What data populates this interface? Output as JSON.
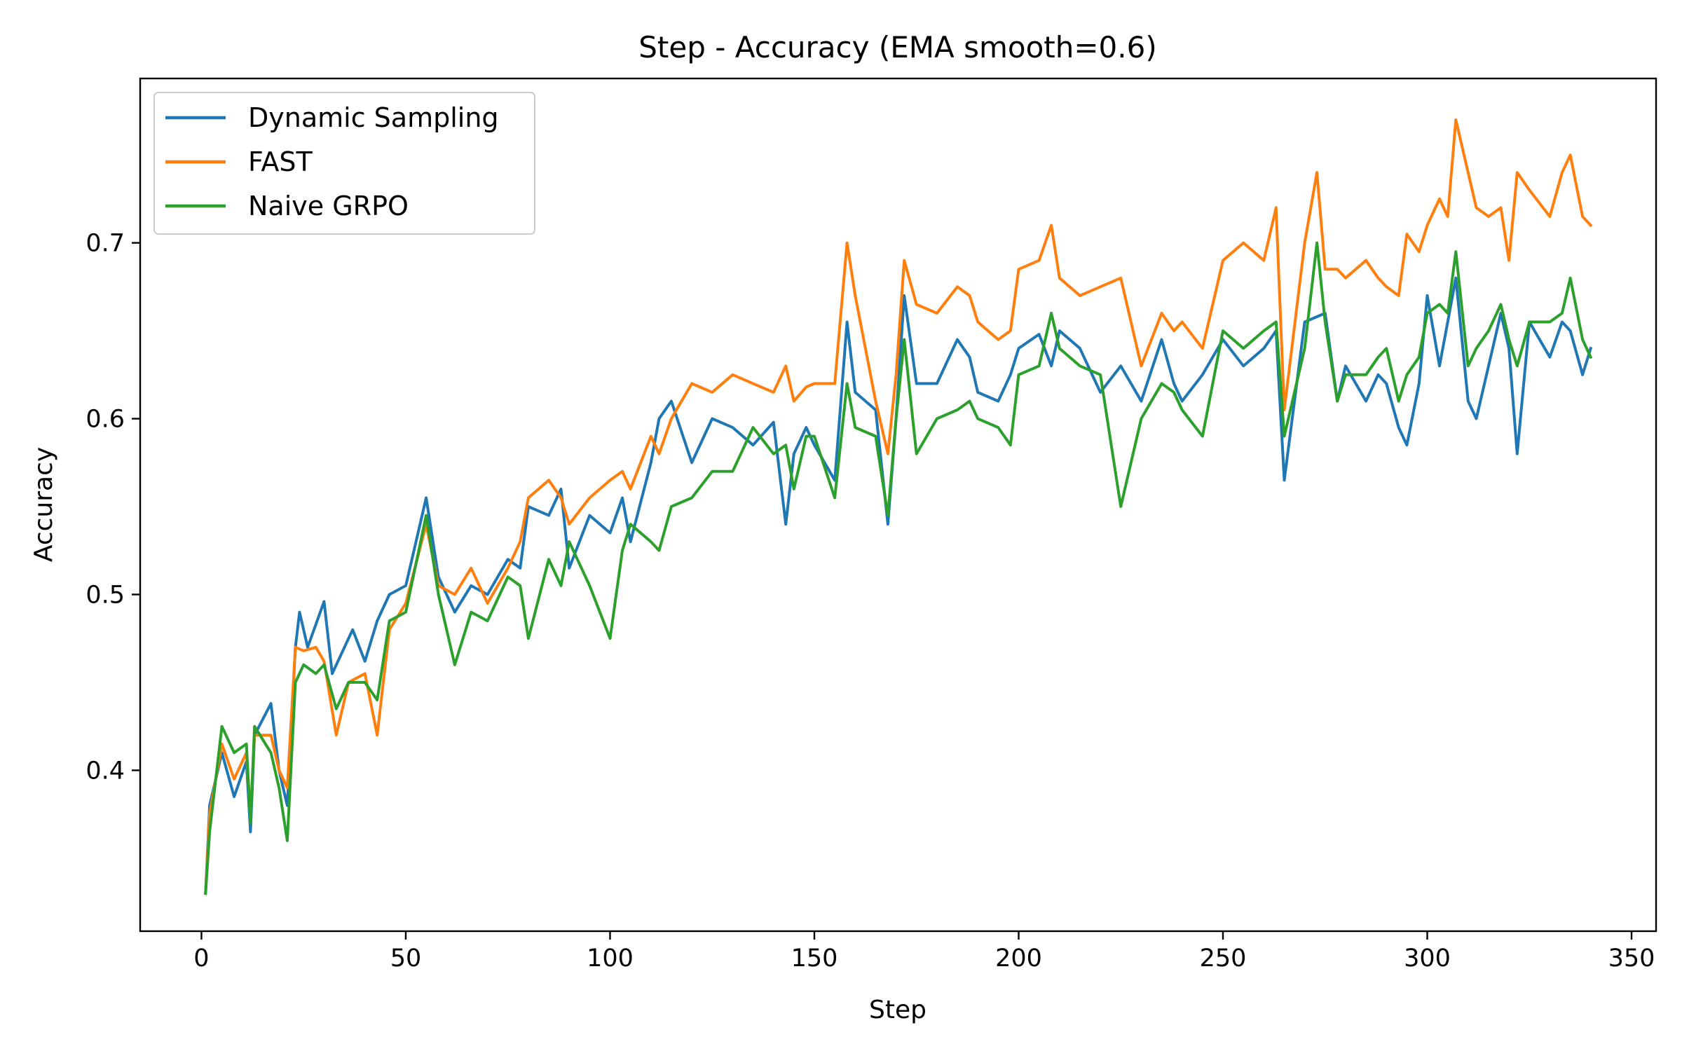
{
  "chart_data": {
    "type": "line",
    "title": "Step - Accuracy (EMA smooth=0.6)",
    "xlabel": "Step",
    "ylabel": "Accuracy",
    "xlim": [
      -15,
      356
    ],
    "ylim": [
      0.3085,
      0.7935
    ],
    "xticks": [
      0,
      50,
      100,
      150,
      200,
      250,
      300,
      350
    ],
    "yticks": [
      0.4,
      0.5,
      0.6,
      0.7
    ],
    "xtick_labels": [
      "0",
      "50",
      "100",
      "150",
      "200",
      "250",
      "300",
      "350"
    ],
    "ytick_labels": [
      "0.4",
      "0.5",
      "0.6",
      "0.7"
    ],
    "grid": false,
    "legend_position": "top-left",
    "series": [
      {
        "name": "Dynamic Sampling",
        "color": "#1f77b4",
        "x": [
          1,
          2,
          5,
          8,
          11,
          12,
          13,
          17,
          19,
          21,
          23,
          24,
          26,
          30,
          32,
          35,
          37,
          40,
          43,
          46,
          50,
          55,
          58,
          62,
          66,
          70,
          75,
          78,
          80,
          85,
          88,
          90,
          95,
          100,
          103,
          105,
          110,
          112,
          115,
          120,
          125,
          130,
          135,
          140,
          143,
          145,
          148,
          150,
          155,
          158,
          160,
          165,
          168,
          170,
          172,
          175,
          180,
          185,
          188,
          190,
          195,
          198,
          200,
          205,
          208,
          210,
          215,
          220,
          225,
          230,
          235,
          238,
          240,
          245,
          250,
          255,
          260,
          263,
          265,
          270,
          275,
          278,
          280,
          285,
          288,
          290,
          293,
          295,
          298,
          300,
          303,
          305,
          307,
          310,
          312,
          315,
          318,
          320,
          322,
          325,
          330,
          333,
          335,
          338,
          340
        ],
        "y": [
          0.33,
          0.38,
          0.41,
          0.385,
          0.405,
          0.365,
          0.42,
          0.438,
          0.4,
          0.38,
          0.47,
          0.49,
          0.47,
          0.496,
          0.455,
          0.47,
          0.48,
          0.462,
          0.485,
          0.5,
          0.505,
          0.555,
          0.51,
          0.49,
          0.505,
          0.5,
          0.52,
          0.515,
          0.55,
          0.545,
          0.56,
          0.515,
          0.545,
          0.535,
          0.555,
          0.53,
          0.575,
          0.6,
          0.61,
          0.575,
          0.6,
          0.595,
          0.585,
          0.598,
          0.54,
          0.58,
          0.595,
          0.585,
          0.565,
          0.655,
          0.615,
          0.605,
          0.54,
          0.6,
          0.67,
          0.62,
          0.62,
          0.645,
          0.635,
          0.615,
          0.61,
          0.625,
          0.64,
          0.648,
          0.63,
          0.65,
          0.64,
          0.615,
          0.63,
          0.61,
          0.645,
          0.62,
          0.61,
          0.625,
          0.645,
          0.63,
          0.64,
          0.65,
          0.565,
          0.655,
          0.66,
          0.61,
          0.63,
          0.61,
          0.625,
          0.62,
          0.595,
          0.585,
          0.62,
          0.67,
          0.63,
          0.655,
          0.68,
          0.61,
          0.6,
          0.63,
          0.66,
          0.64,
          0.58,
          0.655,
          0.635,
          0.655,
          0.65,
          0.625,
          0.64
        ]
      },
      {
        "name": "FAST",
        "color": "#ff7f0e",
        "x": [
          1,
          2,
          5,
          8,
          11,
          12,
          13,
          17,
          19,
          21,
          23,
          25,
          28,
          30,
          33,
          36,
          40,
          43,
          46,
          50,
          55,
          58,
          62,
          66,
          70,
          75,
          78,
          80,
          85,
          88,
          90,
          95,
          100,
          103,
          105,
          110,
          112,
          115,
          120,
          125,
          130,
          135,
          140,
          143,
          145,
          148,
          150,
          155,
          158,
          160,
          165,
          168,
          170,
          172,
          175,
          180,
          185,
          188,
          190,
          195,
          198,
          200,
          205,
          208,
          210,
          215,
          220,
          225,
          230,
          235,
          238,
          240,
          245,
          250,
          255,
          260,
          263,
          265,
          270,
          273,
          275,
          278,
          280,
          285,
          288,
          290,
          293,
          295,
          298,
          300,
          303,
          305,
          307,
          310,
          312,
          315,
          318,
          320,
          322,
          325,
          330,
          333,
          335,
          338,
          340
        ],
        "y": [
          0.33,
          0.375,
          0.415,
          0.395,
          0.41,
          0.375,
          0.42,
          0.42,
          0.4,
          0.39,
          0.47,
          0.468,
          0.47,
          0.462,
          0.42,
          0.45,
          0.455,
          0.42,
          0.48,
          0.495,
          0.54,
          0.505,
          0.5,
          0.515,
          0.495,
          0.515,
          0.53,
          0.555,
          0.565,
          0.555,
          0.54,
          0.555,
          0.565,
          0.57,
          0.56,
          0.59,
          0.58,
          0.6,
          0.62,
          0.615,
          0.625,
          0.62,
          0.615,
          0.63,
          0.61,
          0.618,
          0.62,
          0.62,
          0.7,
          0.67,
          0.61,
          0.58,
          0.625,
          0.69,
          0.665,
          0.66,
          0.675,
          0.67,
          0.655,
          0.645,
          0.65,
          0.685,
          0.69,
          0.71,
          0.68,
          0.67,
          0.675,
          0.68,
          0.63,
          0.66,
          0.65,
          0.655,
          0.64,
          0.69,
          0.7,
          0.69,
          0.72,
          0.605,
          0.7,
          0.74,
          0.685,
          0.685,
          0.68,
          0.69,
          0.68,
          0.675,
          0.67,
          0.705,
          0.695,
          0.71,
          0.725,
          0.715,
          0.77,
          0.74,
          0.72,
          0.715,
          0.72,
          0.69,
          0.74,
          0.73,
          0.715,
          0.74,
          0.75,
          0.715,
          0.71
        ]
      },
      {
        "name": "Naive GRPO",
        "color": "#2ca02c",
        "x": [
          1,
          2,
          5,
          8,
          11,
          12,
          13,
          17,
          19,
          21,
          23,
          25,
          28,
          30,
          33,
          36,
          40,
          43,
          46,
          50,
          55,
          58,
          62,
          66,
          70,
          75,
          78,
          80,
          85,
          88,
          90,
          95,
          100,
          103,
          105,
          110,
          112,
          115,
          120,
          125,
          130,
          135,
          140,
          143,
          145,
          148,
          150,
          155,
          158,
          160,
          165,
          168,
          170,
          172,
          175,
          180,
          185,
          188,
          190,
          195,
          198,
          200,
          205,
          208,
          210,
          215,
          220,
          225,
          230,
          235,
          238,
          240,
          245,
          250,
          255,
          260,
          263,
          265,
          270,
          273,
          275,
          278,
          280,
          285,
          288,
          290,
          293,
          295,
          298,
          300,
          303,
          305,
          307,
          310,
          312,
          315,
          318,
          320,
          322,
          325,
          330,
          333,
          335,
          338,
          340
        ],
        "y": [
          0.33,
          0.365,
          0.425,
          0.41,
          0.415,
          0.37,
          0.425,
          0.41,
          0.39,
          0.36,
          0.45,
          0.46,
          0.455,
          0.46,
          0.435,
          0.45,
          0.45,
          0.44,
          0.485,
          0.49,
          0.545,
          0.5,
          0.46,
          0.49,
          0.485,
          0.51,
          0.505,
          0.475,
          0.52,
          0.505,
          0.53,
          0.505,
          0.475,
          0.525,
          0.54,
          0.53,
          0.525,
          0.55,
          0.555,
          0.57,
          0.57,
          0.595,
          0.58,
          0.585,
          0.56,
          0.59,
          0.59,
          0.555,
          0.62,
          0.595,
          0.59,
          0.545,
          0.6,
          0.645,
          0.58,
          0.6,
          0.605,
          0.61,
          0.6,
          0.595,
          0.585,
          0.625,
          0.63,
          0.66,
          0.64,
          0.63,
          0.625,
          0.55,
          0.6,
          0.62,
          0.615,
          0.605,
          0.59,
          0.65,
          0.64,
          0.65,
          0.655,
          0.59,
          0.64,
          0.7,
          0.655,
          0.61,
          0.625,
          0.625,
          0.635,
          0.64,
          0.61,
          0.625,
          0.635,
          0.66,
          0.665,
          0.66,
          0.695,
          0.63,
          0.64,
          0.65,
          0.665,
          0.645,
          0.63,
          0.655,
          0.655,
          0.66,
          0.68,
          0.645,
          0.635
        ]
      }
    ]
  }
}
